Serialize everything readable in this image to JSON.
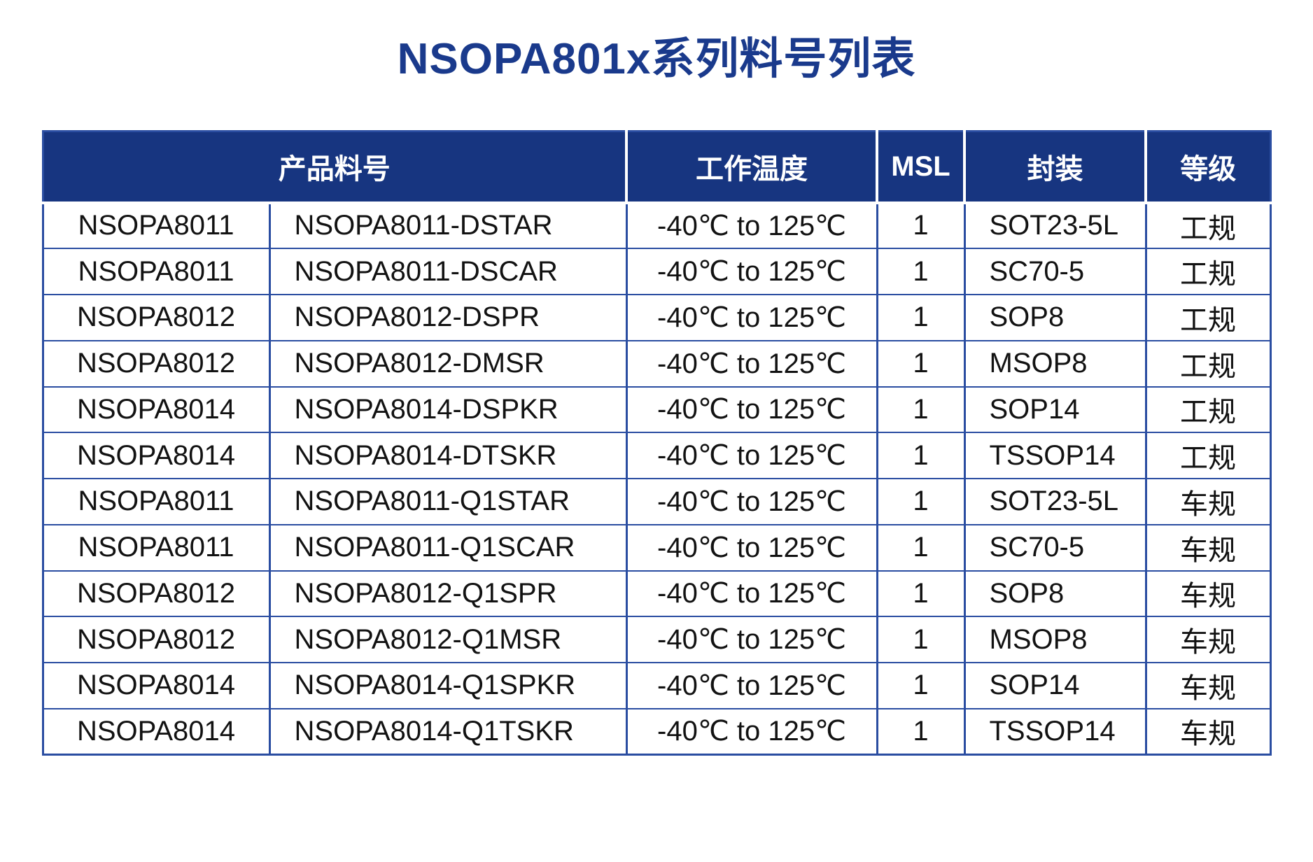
{
  "title": "NSOPA801x系列料号列表",
  "colors": {
    "title_text": "#1a3a8c",
    "header_bg": "#173580",
    "header_text": "#ffffff",
    "border": "#2a4da1",
    "cell_text": "#121212",
    "row_bg": "#ffffff"
  },
  "table": {
    "headers": {
      "product": "产品料号",
      "temperature": "工作温度",
      "msl": "MSL",
      "package": "封装",
      "grade": "等级"
    },
    "rows": [
      {
        "series": "NSOPA8011",
        "part": "NSOPA8011-DSTAR",
        "temperature": "-40℃ to 125℃",
        "msl": "1",
        "package": "SOT23-5L",
        "grade": "工规"
      },
      {
        "series": "NSOPA8011",
        "part": "NSOPA8011-DSCAR",
        "temperature": "-40℃ to 125℃",
        "msl": "1",
        "package": "SC70-5",
        "grade": "工规"
      },
      {
        "series": "NSOPA8012",
        "part": "NSOPA8012-DSPR",
        "temperature": "-40℃ to 125℃",
        "msl": "1",
        "package": "SOP8",
        "grade": "工规"
      },
      {
        "series": "NSOPA8012",
        "part": "NSOPA8012-DMSR",
        "temperature": "-40℃ to 125℃",
        "msl": "1",
        "package": "MSOP8",
        "grade": "工规"
      },
      {
        "series": "NSOPA8014",
        "part": "NSOPA8014-DSPKR",
        "temperature": "-40℃ to 125℃",
        "msl": "1",
        "package": "SOP14",
        "grade": "工规"
      },
      {
        "series": "NSOPA8014",
        "part": "NSOPA8014-DTSKR",
        "temperature": "-40℃ to 125℃",
        "msl": "1",
        "package": "TSSOP14",
        "grade": "工规"
      },
      {
        "series": "NSOPA8011",
        "part": "NSOPA8011-Q1STAR",
        "temperature": "-40℃ to 125℃",
        "msl": "1",
        "package": "SOT23-5L",
        "grade": "车规"
      },
      {
        "series": "NSOPA8011",
        "part": "NSOPA8011-Q1SCAR",
        "temperature": "-40℃ to 125℃",
        "msl": "1",
        "package": "SC70-5",
        "grade": "车规"
      },
      {
        "series": "NSOPA8012",
        "part": "NSOPA8012-Q1SPR",
        "temperature": "-40℃ to 125℃",
        "msl": "1",
        "package": "SOP8",
        "grade": "车规"
      },
      {
        "series": "NSOPA8012",
        "part": "NSOPA8012-Q1MSR",
        "temperature": "-40℃ to 125℃",
        "msl": "1",
        "package": "MSOP8",
        "grade": "车规"
      },
      {
        "series": "NSOPA8014",
        "part": "NSOPA8014-Q1SPKR",
        "temperature": "-40℃ to 125℃",
        "msl": "1",
        "package": "SOP14",
        "grade": "车规"
      },
      {
        "series": "NSOPA8014",
        "part": "NSOPA8014-Q1TSKR",
        "temperature": "-40℃ to 125℃",
        "msl": "1",
        "package": "TSSOP14",
        "grade": "车规"
      }
    ]
  }
}
